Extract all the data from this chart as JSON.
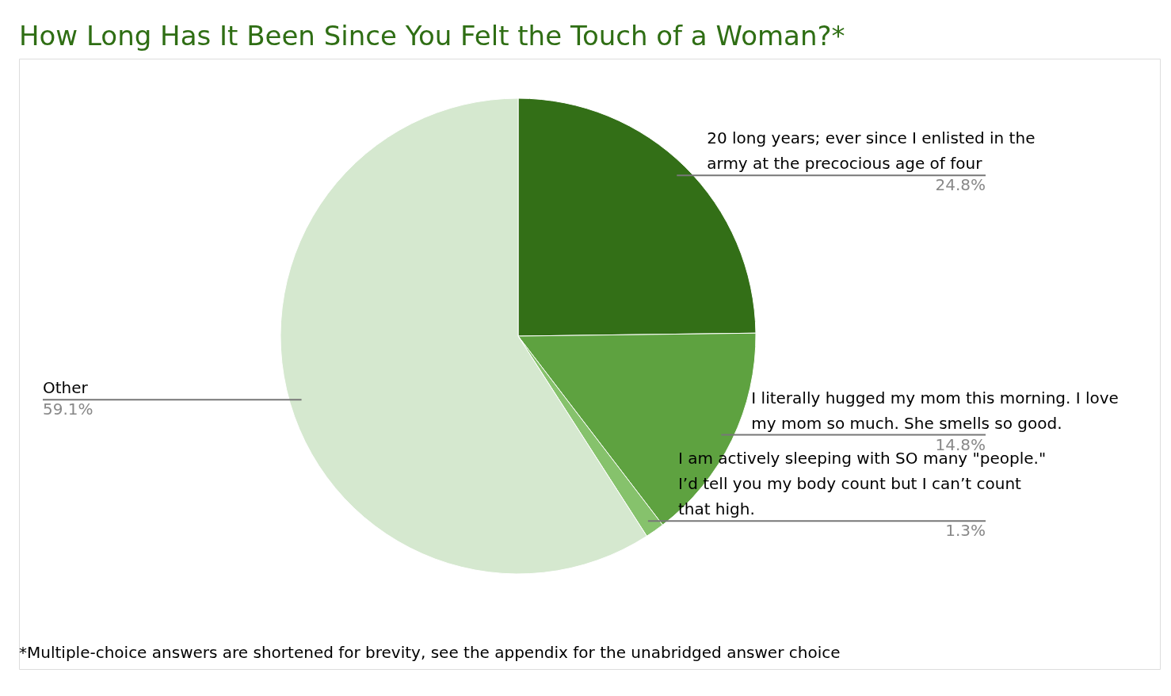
{
  "chart_data": {
    "type": "pie",
    "title": "How Long Has It Been Since You Felt the Touch of a Woman?*",
    "categories": [
      "20 long years; ever since I enlisted in the army at the precocious age of four",
      "I literally hugged my mom this morning. I love my mom so much. She smells so good.",
      "I am actively sleeping with SO many \"people.\" I’d tell you my body count but I can’t count that high.",
      "Other"
    ],
    "values": [
      24.8,
      14.8,
      1.3,
      59.1
    ],
    "colors": [
      "#336f17",
      "#5ea240",
      "#86c26c",
      "#d5e8cf"
    ],
    "value_labels": [
      "24.8%",
      "14.8%",
      "1.3%",
      "59.1%"
    ],
    "annotations": [
      "*Multiple-choice answers are shortened for brevity, see the appendix for the unabridged answer choice"
    ],
    "legend": false
  }
}
